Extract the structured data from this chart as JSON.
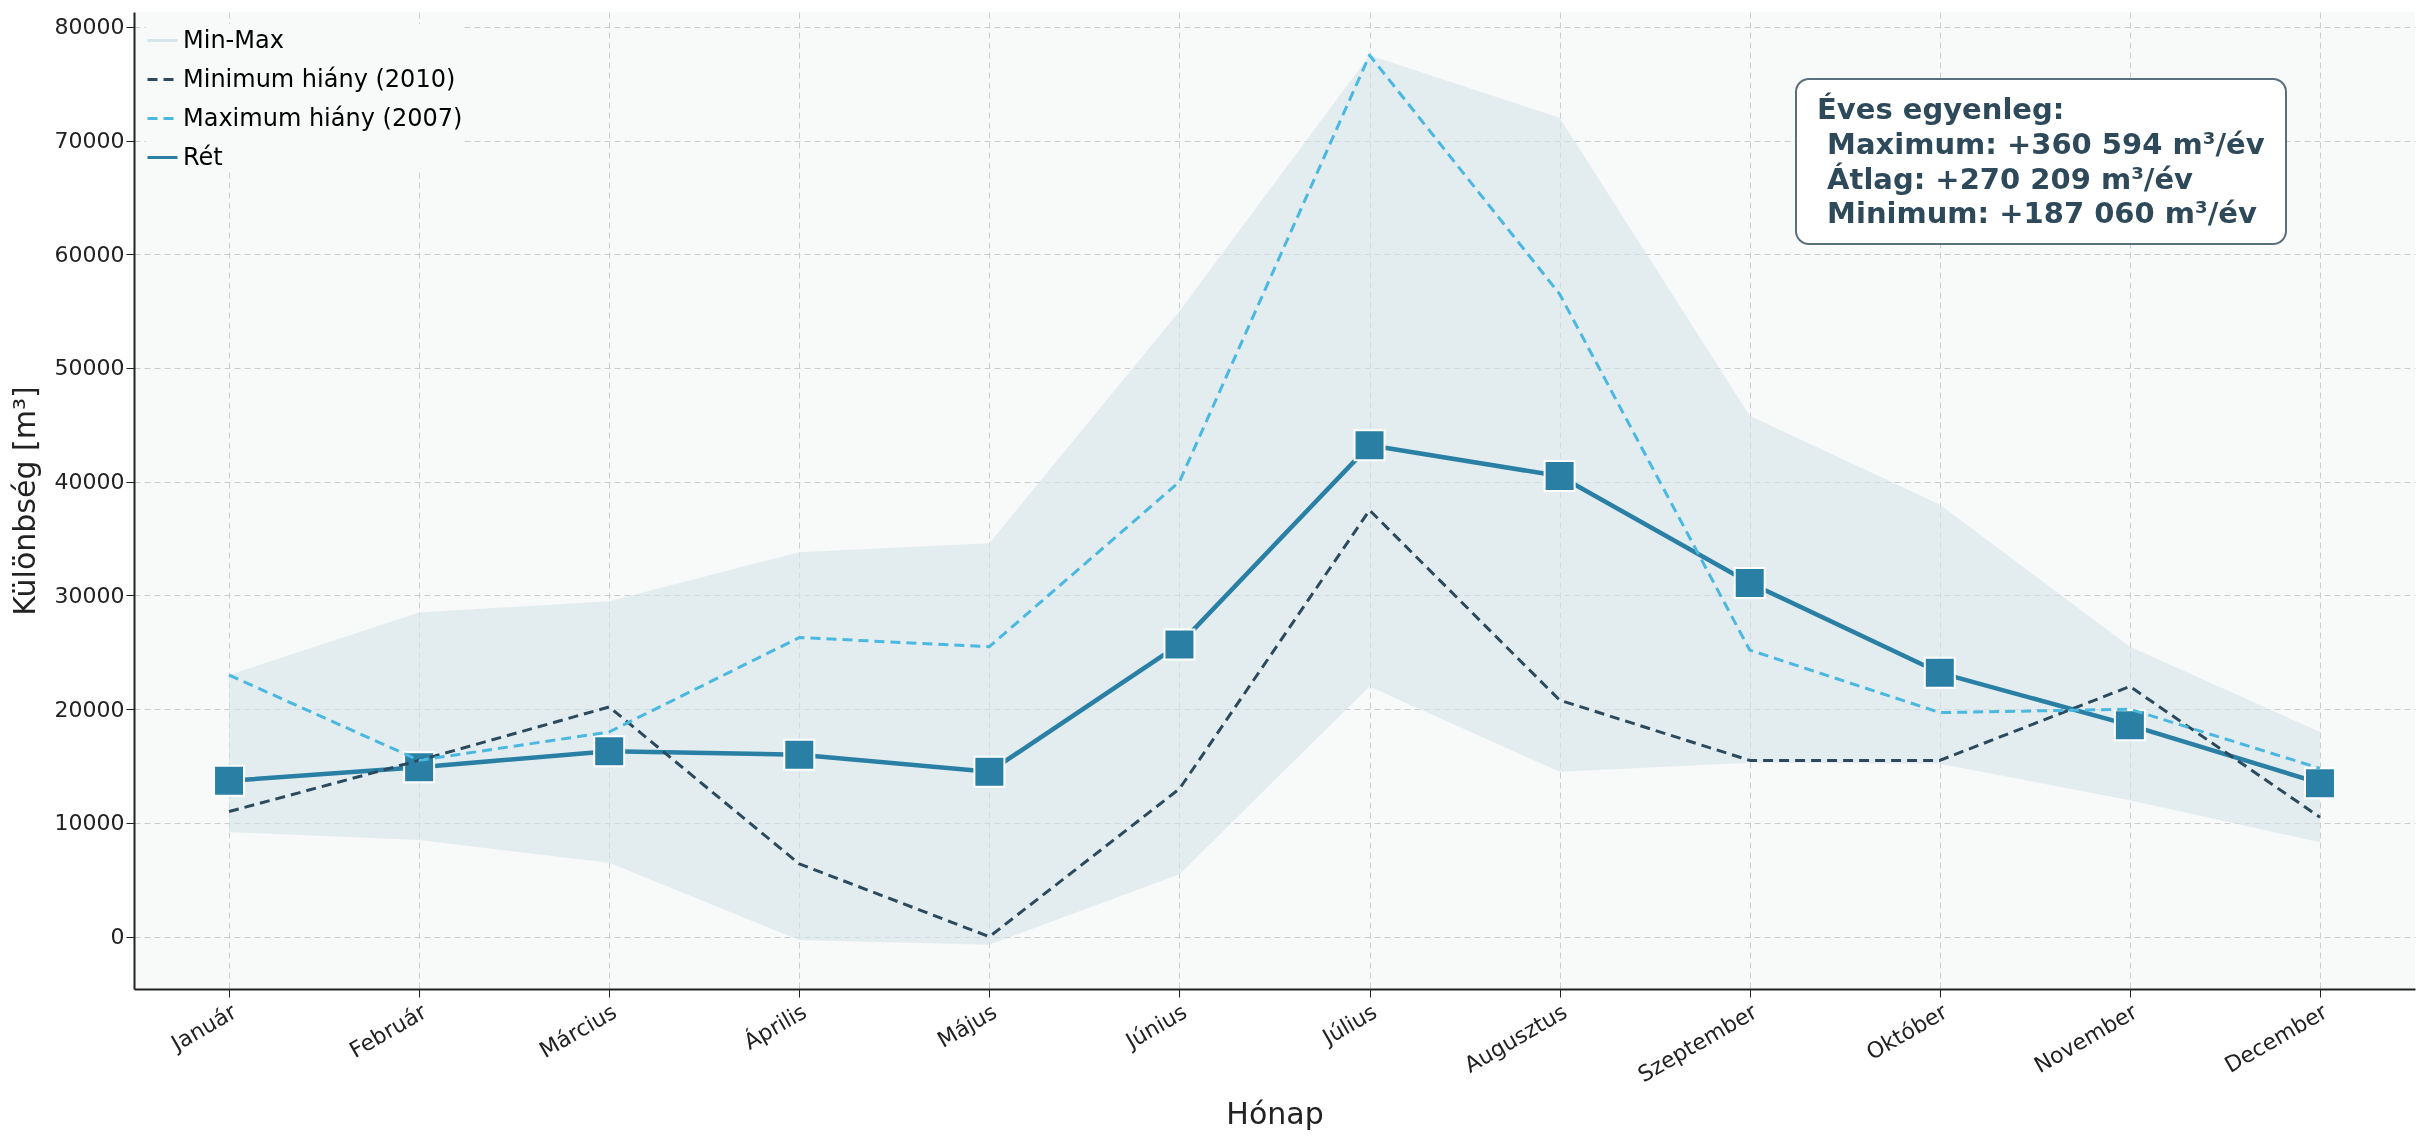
{
  "chart_data": {
    "type": "line",
    "xlabel": "Hónap",
    "ylabel": "Különbség [m³]",
    "categories": [
      "Január",
      "Február",
      "Március",
      "Április",
      "Május",
      "Június",
      "Július",
      "Augusztus",
      "Szeptember",
      "Október",
      "November",
      "December"
    ],
    "series": [
      {
        "name": "Min-Max",
        "color": "#d5e5ea",
        "values": [
          null,
          null,
          null,
          null,
          null,
          null,
          null,
          null,
          null,
          null,
          null,
          null
        ],
        "lower": [
          9200,
          8500,
          6500,
          -300,
          -700,
          5500,
          22000,
          14500,
          15300,
          15200,
          12000,
          8300
        ],
        "upper": [
          23000,
          28500,
          29500,
          33800,
          34600,
          55000,
          77500,
          72000,
          45800,
          38000,
          25500,
          18000
        ]
      },
      {
        "name": "Minimum hiány (2010)",
        "color": "#2c4a5e",
        "line_style": "dashed",
        "marker": "none",
        "values": [
          11000,
          15500,
          20200,
          6400,
          0,
          13000,
          37500,
          20800,
          15500,
          15500,
          22000,
          10500
        ]
      },
      {
        "name": "Maximum hiány (2007)",
        "color": "#4ab8e0",
        "line_style": "dashed",
        "marker": "none",
        "values": [
          23000,
          15500,
          18000,
          26300,
          25500,
          40000,
          77500,
          56500,
          25200,
          19700,
          20000,
          14800
        ]
      },
      {
        "name": "Rét",
        "color": "#2a7fa5",
        "line_style": "solid",
        "marker": "square",
        "values": [
          13700,
          14900,
          16300,
          16000,
          14500,
          25700,
          43200,
          40500,
          31100,
          23200,
          18600,
          13500
        ]
      }
    ],
    "ylim": [
      -4600,
      81300
    ],
    "yticks": [
      0,
      10000,
      20000,
      30000,
      40000,
      50000,
      60000,
      70000,
      80000
    ],
    "grid": true,
    "legend": "top left",
    "annotations": [
      "Éves egyenleg:\n Maximum: +360 594 m³/év\n Átlag: +270 209 m³/év\n Minimum: +187 060 m³/év"
    ]
  }
}
